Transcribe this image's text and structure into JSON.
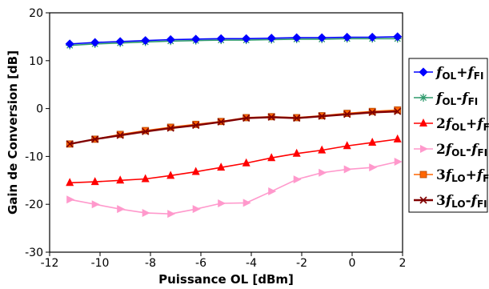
{
  "chart_data": {
    "type": "line",
    "xlabel": "Puissance OL [dBm]",
    "ylabel": "Gain de Conversion [dB]",
    "xlim": [
      -12,
      2
    ],
    "ylim": [
      -30,
      20
    ],
    "xticks": [
      "-12",
      "-10",
      "-8",
      "-6",
      "-4",
      "-2",
      "0",
      "2"
    ],
    "xtick_values": [
      -12,
      -10,
      -8,
      -6,
      -4,
      -2,
      0,
      2
    ],
    "yticks": [
      "-30",
      "-20",
      "-10",
      "0",
      "10",
      "20"
    ],
    "ytick_values": [
      -30,
      -20,
      -10,
      0,
      10,
      20
    ],
    "grid": false,
    "legend_position": "right",
    "x": [
      -11.2,
      -10.2,
      -9.2,
      -8.2,
      -7.2,
      -6.2,
      -5.2,
      -4.2,
      -3.2,
      -2.2,
      -1.2,
      -0.2,
      0.8,
      1.8
    ],
    "series": [
      {
        "name": "fOL+fFI",
        "legend": [
          {
            "t": "f",
            "style": "italic"
          },
          {
            "t": "OL",
            "style": "sub"
          },
          {
            "t": "+",
            "style": "normal"
          },
          {
            "t": "f",
            "style": "italic"
          },
          {
            "t": "FI",
            "style": "sub"
          }
        ],
        "color": "#0000ff",
        "marker": "diamond",
        "values": [
          13.5,
          13.8,
          14.0,
          14.2,
          14.4,
          14.5,
          14.6,
          14.6,
          14.7,
          14.8,
          14.8,
          14.9,
          14.9,
          15.0
        ]
      },
      {
        "name": "fOL-fFI",
        "legend": [
          {
            "t": "f",
            "style": "italic"
          },
          {
            "t": "OL",
            "style": "sub"
          },
          {
            "t": "-",
            "style": "normal"
          },
          {
            "t": "f",
            "style": "italic"
          },
          {
            "t": "FI",
            "style": "sub"
          }
        ],
        "color": "#2e9a6c",
        "marker": "asterisk",
        "values": [
          13.2,
          13.5,
          13.7,
          13.9,
          14.1,
          14.2,
          14.3,
          14.3,
          14.4,
          14.5,
          14.5,
          14.6,
          14.6,
          14.6
        ]
      },
      {
        "name": "2fOL+fFI",
        "legend": [
          {
            "t": "2",
            "style": "normal"
          },
          {
            "t": "f",
            "style": "italic"
          },
          {
            "t": "OL",
            "style": "sub"
          },
          {
            "t": "+",
            "style": "normal"
          },
          {
            "t": "f",
            "style": "italic"
          },
          {
            "t": "FI",
            "style": "sub"
          }
        ],
        "color": "#ff0000",
        "marker": "triangle-up",
        "values": [
          -15.5,
          -15.3,
          -15.0,
          -14.7,
          -14.0,
          -13.2,
          -12.3,
          -11.4,
          -10.3,
          -9.4,
          -8.7,
          -7.8,
          -7.1,
          -6.4
        ]
      },
      {
        "name": "2fOL-fFI",
        "legend": [
          {
            "t": "2",
            "style": "normal"
          },
          {
            "t": "f",
            "style": "italic"
          },
          {
            "t": "OL",
            "style": "sub"
          },
          {
            "t": "-",
            "style": "normal"
          },
          {
            "t": "f",
            "style": "italic"
          },
          {
            "t": "FI",
            "style": "sub"
          }
        ],
        "color": "#ff99cc",
        "marker": "triangle-right",
        "values": [
          -19.0,
          -20.0,
          -21.0,
          -21.8,
          -22.0,
          -21.0,
          -19.8,
          -19.7,
          -17.3,
          -14.8,
          -13.4,
          -12.7,
          -12.3,
          -11.1
        ]
      },
      {
        "name": "3fLO+fFI",
        "legend": [
          {
            "t": "3",
            "style": "normal"
          },
          {
            "t": "f",
            "style": "italic"
          },
          {
            "t": "LO",
            "style": "sub"
          },
          {
            "t": "+",
            "style": "normal"
          },
          {
            "t": "f",
            "style": "italic"
          },
          {
            "t": "FI",
            "style": "sub"
          }
        ],
        "color": "#ff6600",
        "marker": "square",
        "values": [
          -7.4,
          -6.4,
          -5.4,
          -4.6,
          -3.9,
          -3.3,
          -2.7,
          -1.9,
          -1.7,
          -1.9,
          -1.5,
          -1.0,
          -0.6,
          -0.3
        ]
      },
      {
        "name": "3fLO-fFI",
        "legend": [
          {
            "t": "3",
            "style": "normal"
          },
          {
            "t": "f",
            "style": "italic"
          },
          {
            "t": "LO",
            "style": "sub"
          },
          {
            "t": "-",
            "style": "normal"
          },
          {
            "t": "f",
            "style": "italic"
          },
          {
            "t": "FI",
            "style": "sub"
          }
        ],
        "color": "#800000",
        "marker": "x",
        "values": [
          -7.4,
          -6.4,
          -5.6,
          -4.8,
          -4.1,
          -3.5,
          -2.8,
          -2.0,
          -1.8,
          -2.0,
          -1.6,
          -1.2,
          -0.8,
          -0.6
        ]
      }
    ]
  }
}
